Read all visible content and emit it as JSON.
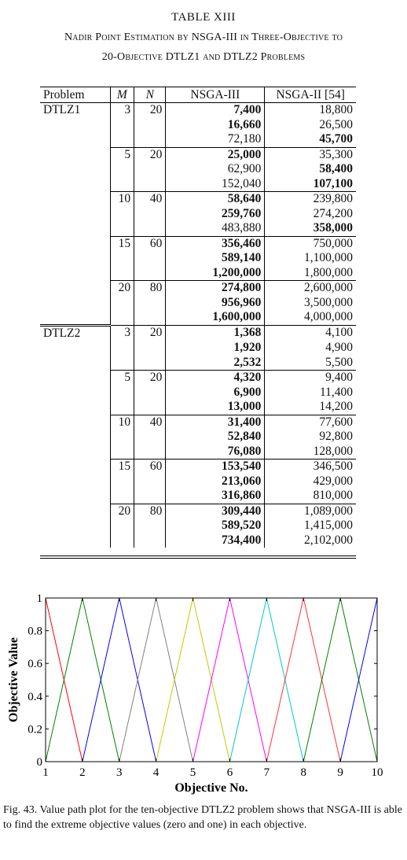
{
  "table": {
    "number": "TABLE XIII",
    "title_line1": "Nadir Point Estimation by NSGA-III in Three-Objective to",
    "title_line2": "20-Objective DTLZ1 and DTLZ2 Problems",
    "headers": {
      "problem": "Problem",
      "m": "M",
      "n": "N",
      "nsga3": "NSGA-III",
      "nsga2": "NSGA-II [54]"
    },
    "groups": [
      {
        "problem": "DTLZ1",
        "m": "3",
        "n": "20",
        "rows": [
          {
            "nsga3": "7,400",
            "nsga3_bold": true,
            "nsga2": "18,800",
            "nsga2_bold": false
          },
          {
            "nsga3": "16,660",
            "nsga3_bold": true,
            "nsga2": "26,500",
            "nsga2_bold": false
          },
          {
            "nsga3": "72,180",
            "nsga3_bold": false,
            "nsga2": "45,700",
            "nsga2_bold": true
          }
        ]
      },
      {
        "problem": "",
        "m": "5",
        "n": "20",
        "rows": [
          {
            "nsga3": "25,000",
            "nsga3_bold": true,
            "nsga2": "35,300",
            "nsga2_bold": false
          },
          {
            "nsga3": "62,900",
            "nsga3_bold": false,
            "nsga2": "58,400",
            "nsga2_bold": true
          },
          {
            "nsga3": "152,040",
            "nsga3_bold": false,
            "nsga2": "107,100",
            "nsga2_bold": true
          }
        ]
      },
      {
        "problem": "",
        "m": "10",
        "n": "40",
        "rows": [
          {
            "nsga3": "58,640",
            "nsga3_bold": true,
            "nsga2": "239,800",
            "nsga2_bold": false
          },
          {
            "nsga3": "259,760",
            "nsga3_bold": true,
            "nsga2": "274,200",
            "nsga2_bold": false
          },
          {
            "nsga3": "483,880",
            "nsga3_bold": false,
            "nsga2": "358,000",
            "nsga2_bold": true
          }
        ]
      },
      {
        "problem": "",
        "m": "15",
        "n": "60",
        "rows": [
          {
            "nsga3": "356,460",
            "nsga3_bold": true,
            "nsga2": "750,000",
            "nsga2_bold": false
          },
          {
            "nsga3": "589,140",
            "nsga3_bold": true,
            "nsga2": "1,100,000",
            "nsga2_bold": false
          },
          {
            "nsga3": "1,200,000",
            "nsga3_bold": true,
            "nsga2": "1,800,000",
            "nsga2_bold": false
          }
        ]
      },
      {
        "problem": "",
        "m": "20",
        "n": "80",
        "rows": [
          {
            "nsga3": "274,800",
            "nsga3_bold": true,
            "nsga2": "2,600,000",
            "nsga2_bold": false
          },
          {
            "nsga3": "956,960",
            "nsga3_bold": true,
            "nsga2": "3,500,000",
            "nsga2_bold": false
          },
          {
            "nsga3": "1,600,000",
            "nsga3_bold": true,
            "nsga2": "4,000,000",
            "nsga2_bold": false
          }
        ]
      },
      {
        "problem": "DTLZ2",
        "m": "3",
        "n": "20",
        "rows": [
          {
            "nsga3": "1,368",
            "nsga3_bold": true,
            "nsga2": "4,100",
            "nsga2_bold": false
          },
          {
            "nsga3": "1,920",
            "nsga3_bold": true,
            "nsga2": "4,900",
            "nsga2_bold": false
          },
          {
            "nsga3": "2,532",
            "nsga3_bold": true,
            "nsga2": "5,500",
            "nsga2_bold": false
          }
        ]
      },
      {
        "problem": "",
        "m": "5",
        "n": "20",
        "rows": [
          {
            "nsga3": "4,320",
            "nsga3_bold": true,
            "nsga2": "9,400",
            "nsga2_bold": false
          },
          {
            "nsga3": "6,900",
            "nsga3_bold": true,
            "nsga2": "11,400",
            "nsga2_bold": false
          },
          {
            "nsga3": "13,000",
            "nsga3_bold": true,
            "nsga2": "14,200",
            "nsga2_bold": false
          }
        ]
      },
      {
        "problem": "",
        "m": "10",
        "n": "40",
        "rows": [
          {
            "nsga3": "31,400",
            "nsga3_bold": true,
            "nsga2": "77,600",
            "nsga2_bold": false
          },
          {
            "nsga3": "52,840",
            "nsga3_bold": true,
            "nsga2": "92,800",
            "nsga2_bold": false
          },
          {
            "nsga3": "76,080",
            "nsga3_bold": true,
            "nsga2": "128,000",
            "nsga2_bold": false
          }
        ]
      },
      {
        "problem": "",
        "m": "15",
        "n": "60",
        "rows": [
          {
            "nsga3": "153,540",
            "nsga3_bold": true,
            "nsga2": "346,500",
            "nsga2_bold": false
          },
          {
            "nsga3": "213,060",
            "nsga3_bold": true,
            "nsga2": "429,000",
            "nsga2_bold": false
          },
          {
            "nsga3": "316,860",
            "nsga3_bold": true,
            "nsga2": "810,000",
            "nsga2_bold": false
          }
        ]
      },
      {
        "problem": "",
        "m": "20",
        "n": "80",
        "rows": [
          {
            "nsga3": "309,440",
            "nsga3_bold": true,
            "nsga2": "1,089,000",
            "nsga2_bold": false
          },
          {
            "nsga3": "589,520",
            "nsga3_bold": true,
            "nsga2": "1,415,000",
            "nsga2_bold": false
          },
          {
            "nsga3": "734,400",
            "nsga3_bold": true,
            "nsga2": "2,102,000",
            "nsga2_bold": false
          }
        ]
      }
    ]
  },
  "chart_data": {
    "type": "line",
    "title": "",
    "xlabel": "Objective No.",
    "ylabel": "Objective Value",
    "xlim": [
      1,
      10
    ],
    "ylim": [
      0,
      1
    ],
    "x_ticks": [
      "1",
      "2",
      "3",
      "4",
      "5",
      "6",
      "7",
      "8",
      "9",
      "10"
    ],
    "y_ticks": [
      "0",
      "0.2",
      "0.4",
      "0.6",
      "0.8",
      "1"
    ],
    "grid": false,
    "x": [
      1,
      2,
      3,
      4,
      5,
      6,
      7,
      8,
      9,
      10
    ],
    "series": [
      {
        "color": "#ff0000",
        "values": [
          1,
          0,
          0,
          0,
          0,
          0,
          0,
          0,
          0,
          0
        ]
      },
      {
        "color": "#008000",
        "values": [
          0,
          1,
          0,
          0,
          0,
          0,
          0,
          0,
          0,
          0
        ]
      },
      {
        "color": "#0000ff",
        "values": [
          0,
          0,
          1,
          0,
          0,
          0,
          0,
          0,
          0,
          0
        ]
      },
      {
        "color": "#808080",
        "values": [
          0,
          0,
          0,
          1,
          0,
          0,
          0,
          0,
          0,
          0
        ]
      },
      {
        "color": "#c8c800",
        "values": [
          0,
          0,
          0,
          0,
          1,
          0,
          0,
          0,
          0,
          0
        ]
      },
      {
        "color": "#ff00ff",
        "values": [
          0,
          0,
          0,
          0,
          0,
          1,
          0,
          0,
          0,
          0
        ]
      },
      {
        "color": "#00c8c8",
        "values": [
          0,
          0,
          0,
          0,
          0,
          0,
          1,
          0,
          0,
          0
        ]
      },
      {
        "color": "#ff3333",
        "values": [
          0,
          0,
          0,
          0,
          0,
          0,
          0,
          1,
          0,
          0
        ]
      },
      {
        "color": "#008000",
        "values": [
          0,
          0,
          0,
          0,
          0,
          0,
          0,
          0,
          1,
          0
        ]
      },
      {
        "color": "#0000ff",
        "values": [
          0,
          0,
          0,
          0,
          0,
          0,
          0,
          0,
          0,
          1
        ]
      }
    ]
  },
  "figure": {
    "caption": "Fig. 43.   Value path plot for the ten-objective DTLZ2 problem shows that NSGA-III is able to find the extreme objective values (zero and one) in each objective."
  }
}
